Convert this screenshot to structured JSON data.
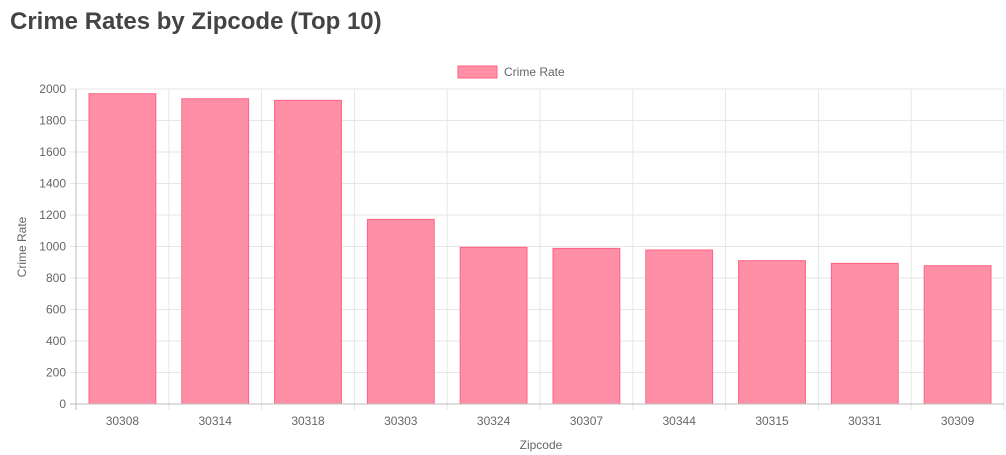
{
  "page": {
    "title": "Crime Rates by Zipcode (Top 10)"
  },
  "chart_data": {
    "type": "bar",
    "categories": [
      "30308",
      "30314",
      "30318",
      "30303",
      "30324",
      "30307",
      "30344",
      "30315",
      "30331",
      "30309"
    ],
    "series": [
      {
        "name": "Crime Rate",
        "values": [
          1970,
          1938,
          1928,
          1172,
          995,
          988,
          978,
          910,
          893,
          878
        ]
      }
    ],
    "xlabel": "Zipcode",
    "ylabel": "Crime Rate",
    "ylim": [
      0,
      2000
    ],
    "yticks": [
      "0",
      "200",
      "400",
      "600",
      "800",
      "1000",
      "1200",
      "1400",
      "1600",
      "1800",
      "2000"
    ],
    "grid": true,
    "legend": "top-center",
    "colors": {
      "bar_fill": "#ff8fa6",
      "bar_stroke": "#ff6384",
      "grid": "#e6e6e6",
      "axis": "#bdbdbd",
      "text": "#666666"
    }
  }
}
